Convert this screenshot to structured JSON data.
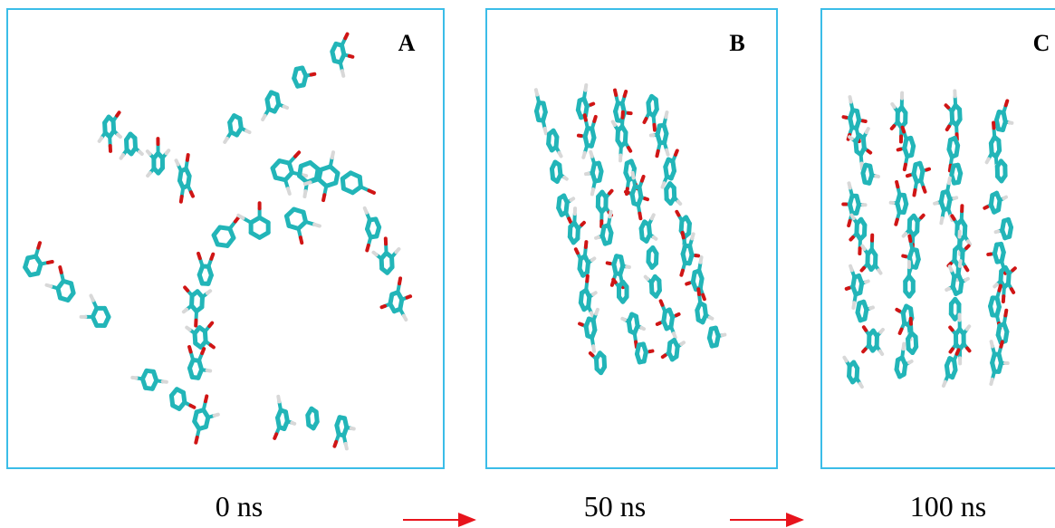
{
  "panels": [
    {
      "label": "A",
      "time": "0 ns"
    },
    {
      "label": "B",
      "time": "50 ns"
    },
    {
      "label": "C",
      "time": "100 ns"
    }
  ]
}
